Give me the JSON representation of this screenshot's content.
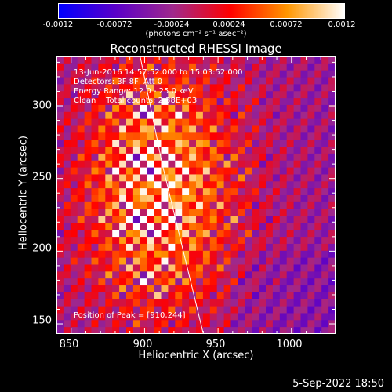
{
  "colorbar": {
    "ticks": [
      "-0.0012",
      "-0.00072",
      "-0.00024",
      "0.00024",
      "0.00072",
      "0.0012"
    ],
    "label": "(photons cm⁻² s⁻¹ asec⁻²)",
    "colors": [
      "#0000ff",
      "#5a00c8",
      "#a0288c",
      "#ff0000",
      "#ff9600",
      "#ffffff"
    ]
  },
  "chart_data": {
    "type": "heatmap",
    "title": "Reconstructed RHESSI Image",
    "xlabel": "Heliocentric X (arcsec)",
    "ylabel": "Heliocentric Y (arcsec)",
    "xlim": [
      840,
      1030
    ],
    "ylim": [
      143,
      334
    ],
    "xticks": [
      "850",
      "900",
      "950",
      "1000"
    ],
    "yticks": [
      "150",
      "200",
      "250",
      "300"
    ],
    "value_range": [
      -0.0012,
      0.0012
    ],
    "peak": [
      910,
      244
    ],
    "limb_line": [
      [
        897,
        334
      ],
      [
        912,
        260
      ],
      [
        940,
        143
      ]
    ],
    "annotations": [
      "13-Jun-2016 14:57:52.000 to 15:03:52.000",
      "Detectors: 3F 8F  Att 0",
      "Energy Range: 12.0 - 25.0 keV",
      "Clean    Total counts: 2.38E+03"
    ],
    "peak_label": "Position of Peak = [910,244]"
  },
  "footer": {
    "date": "5-Sep-2022 18:50"
  }
}
